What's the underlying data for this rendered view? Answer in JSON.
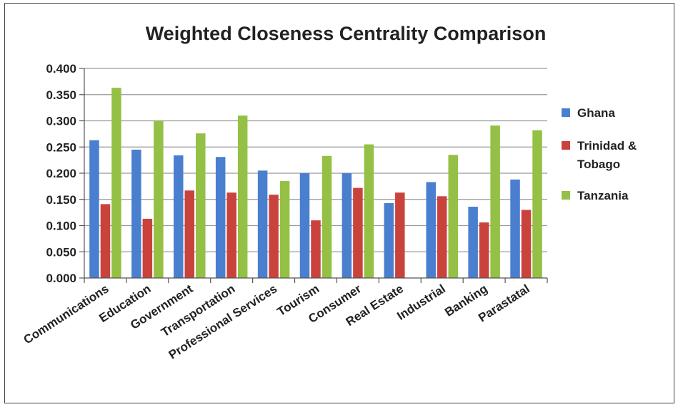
{
  "chart_data": {
    "type": "bar",
    "title": "Weighted Closeness Centrality Comparison",
    "xlabel": "",
    "ylabel": "",
    "ylim": [
      0,
      0.4
    ],
    "yticks": [
      "0.400",
      "0.350",
      "0.300",
      "0.250",
      "0.200",
      "0.150",
      "0.100",
      "0.050",
      "0.000"
    ],
    "grid": true,
    "legend_position": "right",
    "categories": [
      "Communications",
      "Education",
      "Government",
      "Transportation",
      "Professional Services",
      "Tourism",
      "Consumer",
      "Real Estate",
      "Industrial",
      "Banking",
      "Parastatal"
    ],
    "series": [
      {
        "name": "Ghana",
        "color": "#4a7fcf",
        "values": [
          0.263,
          0.245,
          0.234,
          0.231,
          0.205,
          0.2,
          0.2,
          0.143,
          0.183,
          0.136,
          0.188
        ]
      },
      {
        "name": "Trinidad & Tobago",
        "color": "#c9433c",
        "values": [
          0.141,
          0.113,
          0.167,
          0.163,
          0.159,
          0.11,
          0.172,
          0.163,
          0.156,
          0.106,
          0.13
        ]
      },
      {
        "name": "Tanzania",
        "color": "#94c045",
        "values": [
          0.363,
          0.3,
          0.276,
          0.31,
          0.185,
          0.233,
          0.255,
          null,
          0.235,
          0.291,
          0.282
        ]
      }
    ]
  }
}
